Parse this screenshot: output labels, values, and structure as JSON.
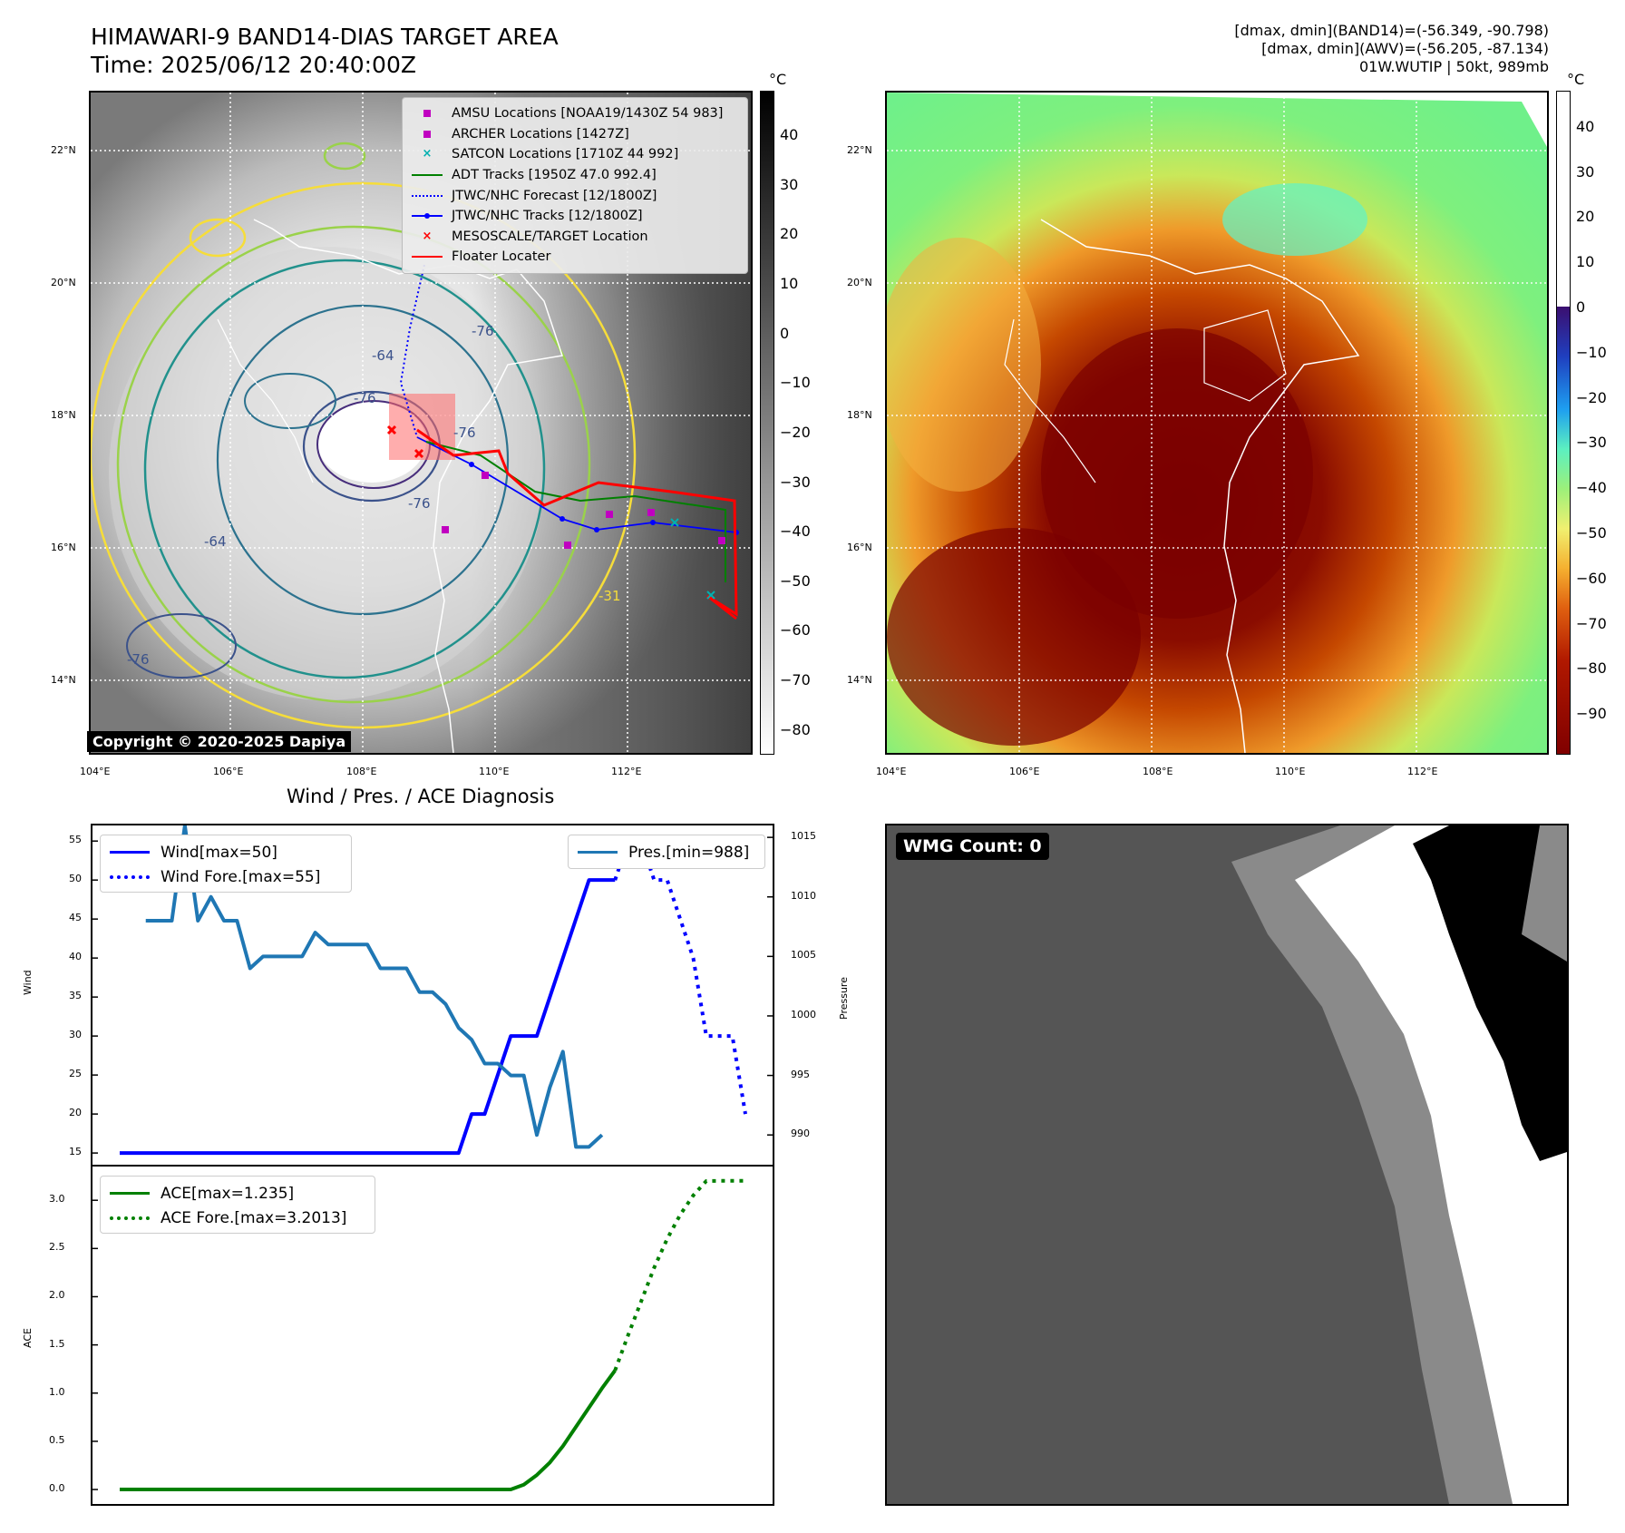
{
  "header": {
    "title_line1": "HIMAWARI-9 BAND14-DIAS TARGET AREA",
    "title_line2": "Time: 2025/06/12 20:40:00Z",
    "info_line1": "[dmax, dmin](BAND14)=(-56.349, -90.798)",
    "info_line2": "[dmax, dmin](AWV)=(-56.205, -87.134)",
    "info_line3": "01W.WUTIP | 50kt, 989mb"
  },
  "map_axes": {
    "lon_labels": [
      "104°E",
      "106°E",
      "108°E",
      "110°E",
      "112°E"
    ],
    "lat_labels": [
      "22°N",
      "20°N",
      "18°N",
      "16°N",
      "14°N"
    ]
  },
  "ir_panel": {
    "colorbar_unit": "°C",
    "colorbar_ticks": [
      "40",
      "30",
      "20",
      "10",
      "0",
      "−10",
      "−20",
      "−30",
      "−40",
      "−50",
      "−60",
      "−70",
      "−80"
    ],
    "contour_labels": [
      "-76",
      "-64",
      "-76",
      "-76",
      "-76",
      "-64",
      "-76",
      "-31"
    ],
    "legend": [
      {
        "label": "AMSU Locations [NOAA19/1430Z 54 983]",
        "symbol": "square",
        "color": "#c000c0"
      },
      {
        "label": "ARCHER Locations [1427Z]",
        "symbol": "square",
        "color": "#c000c0"
      },
      {
        "label": "SATCON Locations [1710Z 44 992]",
        "symbol": "x",
        "color": "#00b0b0"
      },
      {
        "label": "ADT Tracks [1950Z 47.0 992.4]",
        "symbol": "line",
        "color": "#008000"
      },
      {
        "label": "JTWC/NHC Forecast [12/1800Z]",
        "symbol": "dotted",
        "color": "#0000ff"
      },
      {
        "label": "JTWC/NHC Tracks [12/1800Z]",
        "symbol": "line-dot",
        "color": "#0000ff"
      },
      {
        "label": "MESOSCALE/TARGET Location",
        "symbol": "x",
        "color": "#ff0000"
      },
      {
        "label": "Floater Locater",
        "symbol": "line",
        "color": "#ff0000"
      }
    ],
    "copyright": "Copyright © 2020-2025 Dapiya"
  },
  "awv_panel": {
    "colorbar_unit": "°C",
    "colorbar_ticks": [
      "40",
      "30",
      "20",
      "10",
      "0",
      "−10",
      "−20",
      "−30",
      "−40",
      "−50",
      "−60",
      "−70",
      "−80",
      "−90"
    ]
  },
  "diag_title": "Wind / Pres. / ACE Diagnosis",
  "wmg_label": "WMG Count: 0",
  "chart_data": [
    {
      "type": "line",
      "title": "",
      "ylabel": "Wind",
      "y2label": "Pressure",
      "ylim": [
        13.5,
        57
      ],
      "y2lim": [
        987.5,
        1016
      ],
      "yticks": [
        "55",
        "50",
        "45",
        "40",
        "35",
        "30",
        "25",
        "20",
        "15"
      ],
      "y2ticks": [
        "1015",
        "1010",
        "1005",
        "1000",
        "995",
        "990"
      ],
      "legend_left": [
        "Wind[max=50]",
        "Wind Fore.[max=55]"
      ],
      "legend_right": [
        "Pres.[min=988]"
      ],
      "series": [
        {
          "name": "Wind[max=50]",
          "color": "#0000ff",
          "style": "solid",
          "x": [
            0,
            1,
            2,
            3,
            4,
            5,
            6,
            7,
            8,
            9,
            10,
            11,
            12,
            13,
            14,
            15,
            16,
            17,
            18,
            19,
            20,
            21,
            22,
            23,
            24,
            25,
            26,
            27,
            28,
            29,
            30,
            31,
            32,
            33,
            34,
            35,
            36,
            37,
            38
          ],
          "values": [
            15,
            15,
            15,
            15,
            15,
            15,
            15,
            15,
            15,
            15,
            15,
            15,
            15,
            15,
            15,
            15,
            15,
            15,
            15,
            15,
            15,
            15,
            15,
            15,
            15,
            15,
            15,
            20,
            20,
            25,
            30,
            30,
            30,
            35,
            40,
            45,
            50,
            50,
            50
          ]
        },
        {
          "name": "Wind Fore.[max=55]",
          "color": "#0000ff",
          "style": "dotted",
          "x": [
            38,
            39,
            40,
            41,
            42,
            43,
            44,
            45,
            46,
            47,
            48
          ],
          "values": [
            50,
            55,
            55,
            50,
            50,
            45,
            40,
            30,
            30,
            30,
            20
          ]
        },
        {
          "name": "Pres.[min=988]",
          "color": "#1f77b4",
          "style": "solid",
          "axis": "right",
          "x": [
            2,
            3,
            4,
            5,
            6,
            7,
            8,
            9,
            10,
            11,
            12,
            13,
            14,
            15,
            16,
            17,
            18,
            19,
            20,
            21,
            22,
            23,
            24,
            25,
            26,
            27,
            28,
            29,
            30,
            31,
            32,
            33,
            34,
            35,
            36,
            37
          ],
          "values": [
            1008,
            1008,
            1008,
            1016,
            1008,
            1010,
            1008,
            1008,
            1004,
            1005,
            1005,
            1005,
            1005,
            1007,
            1006,
            1006,
            1006,
            1006,
            1004,
            1004,
            1004,
            1002,
            1002,
            1001,
            999,
            998,
            996,
            996,
            995,
            995,
            990,
            994,
            997,
            989,
            989,
            990
          ]
        }
      ]
    },
    {
      "type": "line",
      "title": "",
      "ylabel": "ACE",
      "ylim": [
        -0.15,
        3.35
      ],
      "yticks": [
        "3.0",
        "2.5",
        "2.0",
        "1.5",
        "1.0",
        "0.5",
        "0.0"
      ],
      "legend": [
        "ACE[max=1.235]",
        "ACE Fore.[max=3.2013]"
      ],
      "series": [
        {
          "name": "ACE[max=1.235]",
          "color": "#008000",
          "style": "solid",
          "x": [
            0,
            5,
            10,
            15,
            20,
            25,
            26,
            27,
            28,
            29,
            30,
            31,
            32,
            33,
            34,
            35,
            36,
            37,
            38
          ],
          "values": [
            0,
            0,
            0,
            0,
            0,
            0,
            0,
            0,
            0,
            0,
            0,
            0.05,
            0.15,
            0.28,
            0.45,
            0.65,
            0.85,
            1.05,
            1.235
          ]
        },
        {
          "name": "ACE Fore.[max=3.2013]",
          "color": "#008000",
          "style": "dotted",
          "x": [
            38,
            39,
            40,
            41,
            42,
            43,
            44,
            45,
            46,
            47,
            48
          ],
          "values": [
            1.235,
            1.6,
            1.95,
            2.3,
            2.6,
            2.85,
            3.05,
            3.2,
            3.2013,
            3.2013,
            3.2013
          ]
        }
      ]
    }
  ]
}
